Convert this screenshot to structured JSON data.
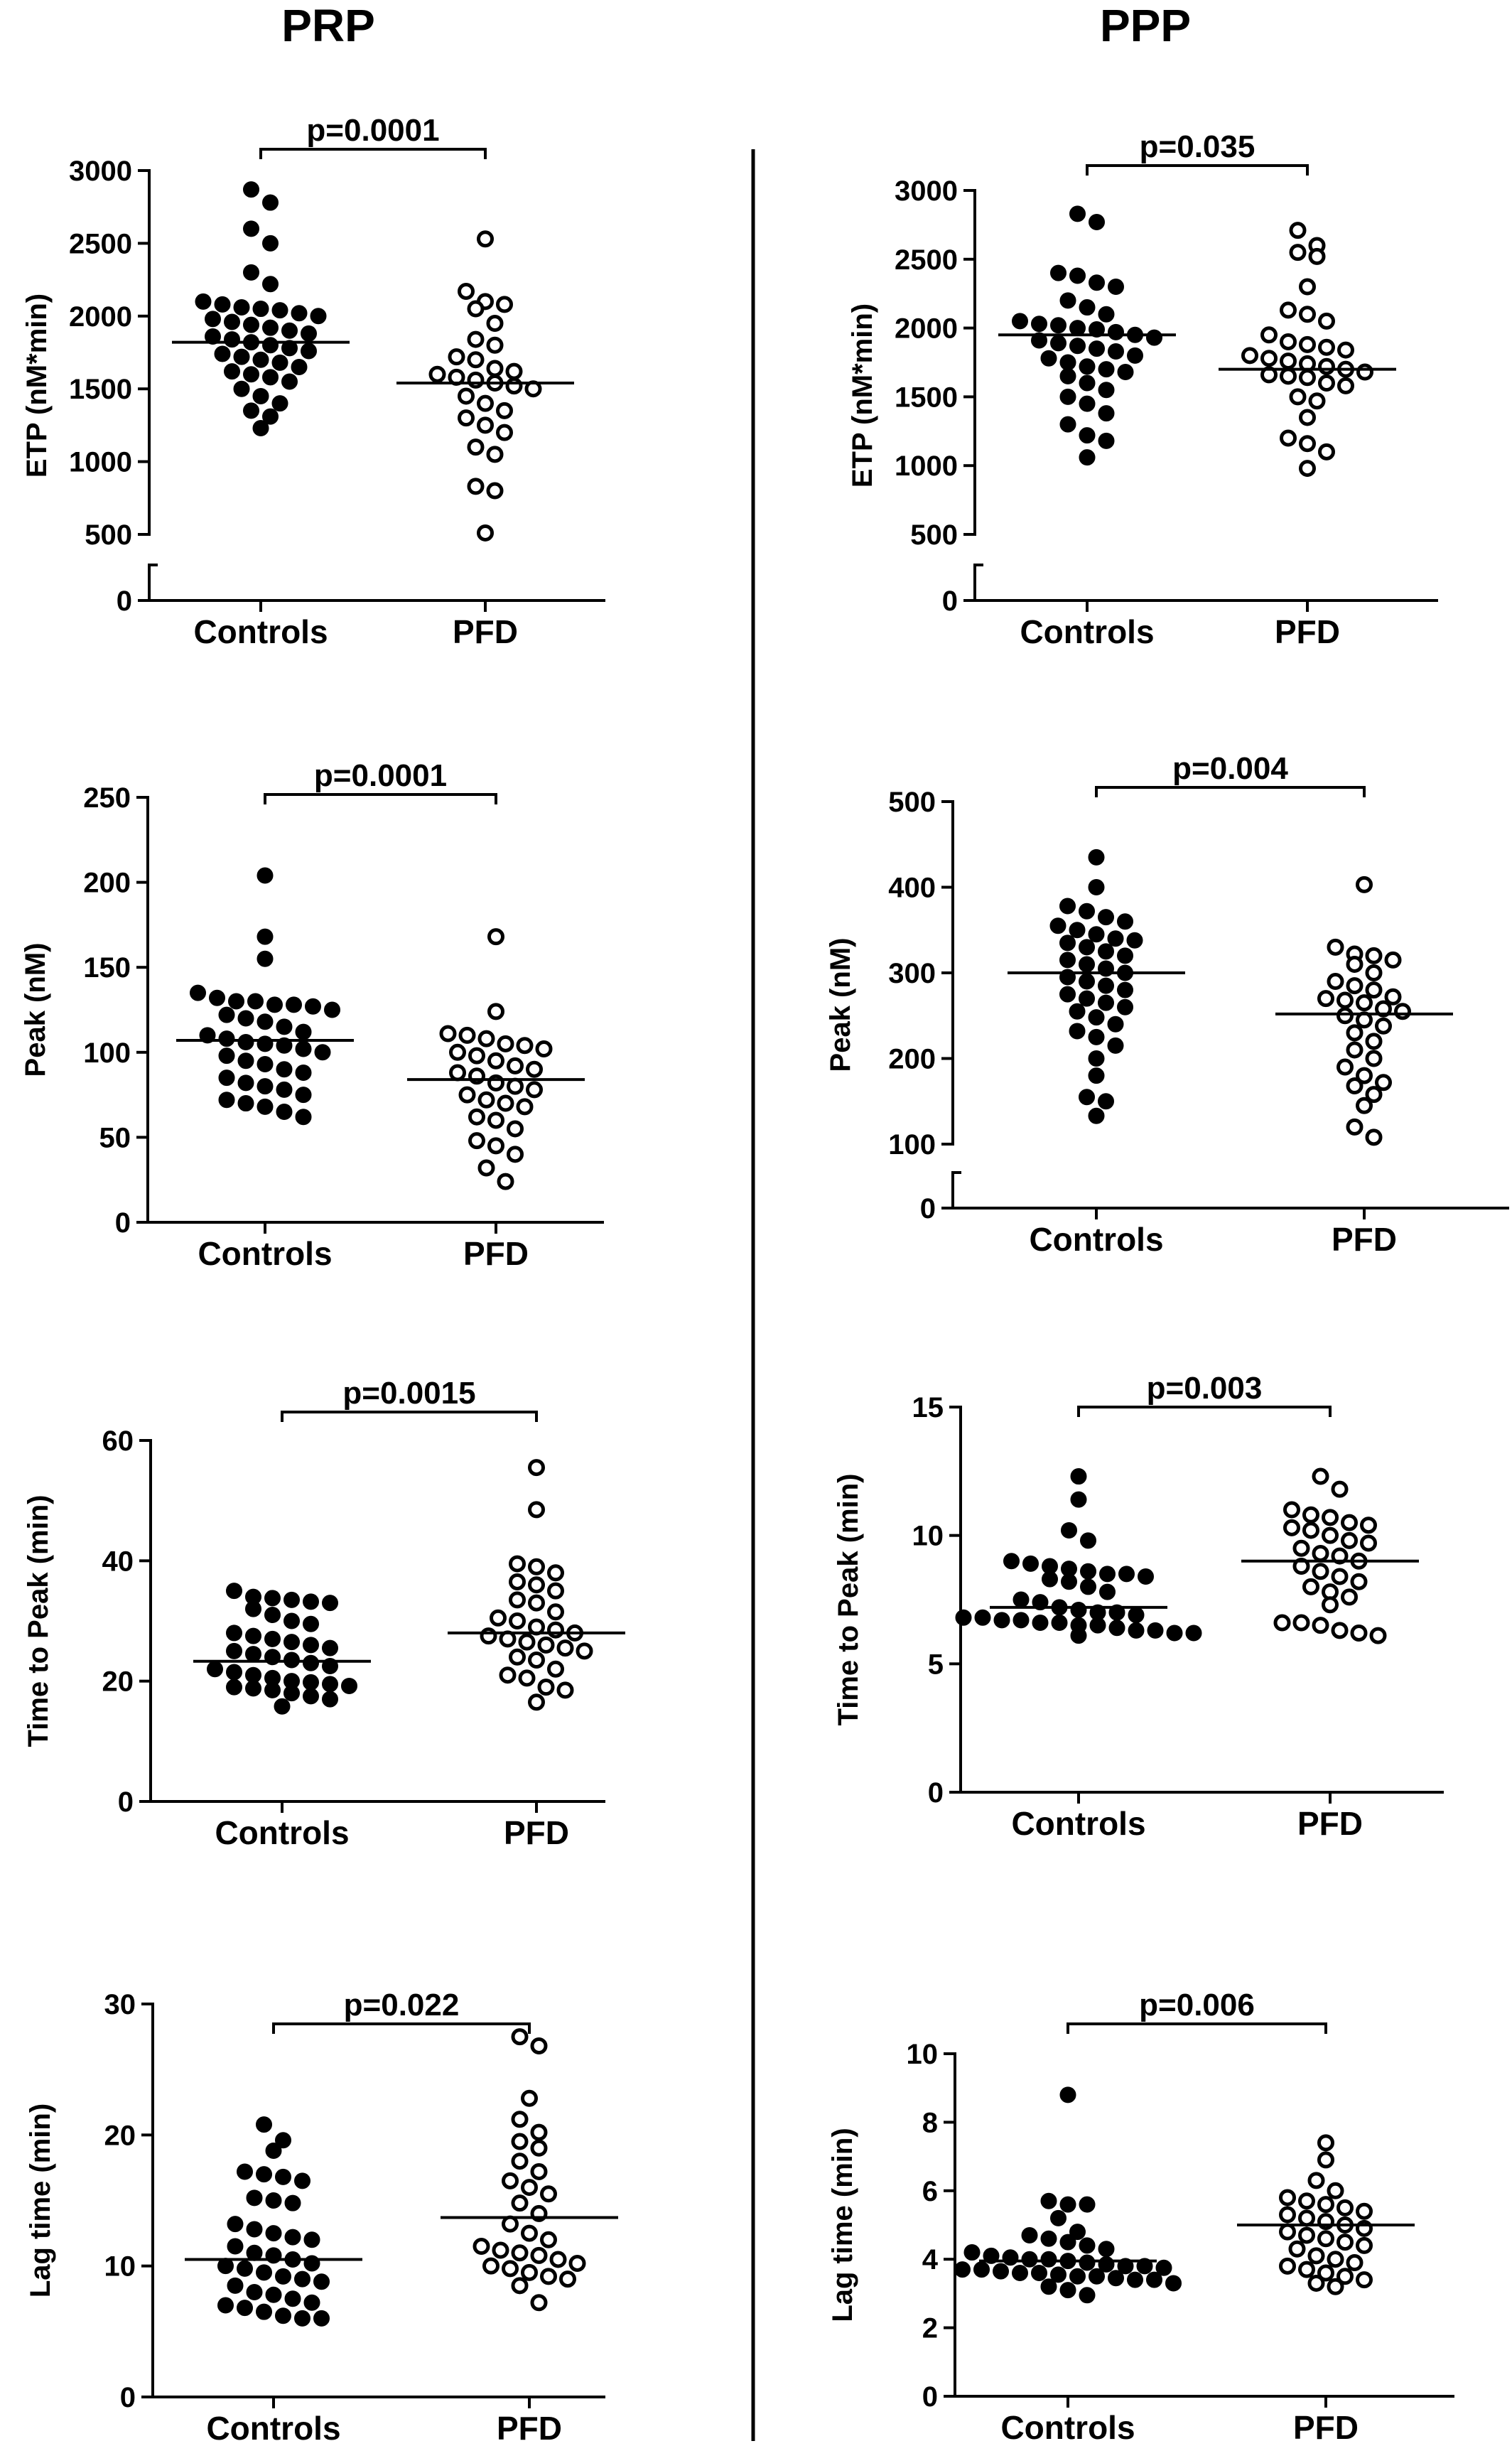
{
  "columns": [
    {
      "title": "PRP"
    },
    {
      "title": "PPP"
    }
  ],
  "chart_data": [
    {
      "type": "scatter",
      "column": "PRP",
      "ylabel": "ETP (nM*min)",
      "categories": [
        "Controls",
        "PFD"
      ],
      "ylim": [
        0,
        3000
      ],
      "yticks": [
        0,
        500,
        1000,
        1500,
        2000,
        2500,
        3000
      ],
      "axis_break": [
        0,
        500
      ],
      "p_value": "p=0.0001",
      "series": [
        {
          "fill": "filled",
          "mean": 1820,
          "values": [
            2870,
            2780,
            2600,
            2500,
            2300,
            2220,
            2100,
            2080,
            2060,
            2050,
            2040,
            2020,
            2000,
            1980,
            1960,
            1940,
            1920,
            1900,
            1880,
            1860,
            1840,
            1820,
            1800,
            1780,
            1760,
            1740,
            1720,
            1700,
            1680,
            1650,
            1620,
            1600,
            1580,
            1550,
            1500,
            1450,
            1400,
            1350,
            1310,
            1230
          ]
        },
        {
          "fill": "open",
          "mean": 1540,
          "values": [
            2530,
            2170,
            2100,
            2080,
            2050,
            1950,
            1840,
            1800,
            1720,
            1700,
            1640,
            1620,
            1600,
            1580,
            1560,
            1540,
            1520,
            1500,
            1450,
            1400,
            1350,
            1300,
            1250,
            1200,
            1100,
            1050,
            830,
            800,
            510
          ]
        }
      ]
    },
    {
      "type": "scatter",
      "column": "PPP",
      "ylabel": "ETP (nM*min)",
      "categories": [
        "Controls",
        "PFD"
      ],
      "ylim": [
        0,
        3000
      ],
      "yticks": [
        0,
        500,
        1000,
        1500,
        2000,
        2500,
        3000
      ],
      "axis_break": [
        0,
        500
      ],
      "p_value": "p=0.035",
      "series": [
        {
          "fill": "filled",
          "mean": 1950,
          "values": [
            2830,
            2770,
            2400,
            2380,
            2330,
            2300,
            2200,
            2150,
            2100,
            2050,
            2030,
            2020,
            2000,
            1990,
            1970,
            1950,
            1930,
            1910,
            1890,
            1870,
            1850,
            1830,
            1800,
            1780,
            1750,
            1720,
            1700,
            1680,
            1650,
            1600,
            1550,
            1500,
            1450,
            1380,
            1300,
            1220,
            1180,
            1060
          ]
        },
        {
          "fill": "open",
          "mean": 1700,
          "values": [
            2710,
            2600,
            2550,
            2520,
            2300,
            2130,
            2100,
            2050,
            1950,
            1900,
            1880,
            1860,
            1840,
            1800,
            1780,
            1760,
            1740,
            1720,
            1700,
            1680,
            1660,
            1650,
            1640,
            1600,
            1580,
            1500,
            1470,
            1350,
            1200,
            1160,
            1100,
            980
          ]
        }
      ]
    },
    {
      "type": "scatter",
      "column": "PRP",
      "ylabel": "Peak (nM)",
      "categories": [
        "Controls",
        "PFD"
      ],
      "ylim": [
        0,
        250
      ],
      "yticks": [
        0,
        50,
        100,
        150,
        200,
        250
      ],
      "p_value": "p=0.0001",
      "series": [
        {
          "fill": "filled",
          "mean": 107,
          "values": [
            204,
            168,
            155,
            135,
            132,
            130,
            130,
            128,
            128,
            127,
            125,
            122,
            120,
            118,
            115,
            112,
            110,
            108,
            106,
            105,
            104,
            102,
            100,
            98,
            95,
            93,
            90,
            88,
            85,
            82,
            80,
            78,
            75,
            72,
            70,
            68,
            65,
            62
          ]
        },
        {
          "fill": "open",
          "mean": 84,
          "values": [
            168,
            124,
            111,
            110,
            108,
            105,
            104,
            102,
            100,
            98,
            95,
            92,
            90,
            88,
            86,
            82,
            80,
            78,
            75,
            72,
            70,
            68,
            62,
            60,
            55,
            48,
            45,
            40,
            32,
            24
          ]
        }
      ]
    },
    {
      "type": "scatter",
      "column": "PPP",
      "ylabel": "Peak (nM)",
      "categories": [
        "Controls",
        "PFD"
      ],
      "ylim": [
        0,
        500
      ],
      "yticks": [
        0,
        100,
        200,
        300,
        400,
        500
      ],
      "axis_break": [
        0,
        100
      ],
      "p_value": "p=0.004",
      "series": [
        {
          "fill": "filled",
          "mean": 300,
          "values": [
            435,
            400,
            378,
            372,
            365,
            360,
            355,
            350,
            345,
            340,
            338,
            335,
            330,
            325,
            320,
            315,
            310,
            305,
            300,
            295,
            290,
            285,
            280,
            275,
            270,
            265,
            260,
            255,
            248,
            240,
            232,
            225,
            215,
            200,
            180,
            155,
            150,
            133
          ]
        },
        {
          "fill": "open",
          "mean": 252,
          "values": [
            403,
            330,
            322,
            320,
            315,
            310,
            300,
            290,
            285,
            280,
            272,
            270,
            268,
            265,
            258,
            255,
            250,
            245,
            238,
            230,
            220,
            210,
            200,
            190,
            180,
            172,
            168,
            158,
            145,
            120,
            108
          ]
        }
      ]
    },
    {
      "type": "scatter",
      "column": "PRP",
      "ylabel": "Time to Peak (min)",
      "categories": [
        "Controls",
        "PFD"
      ],
      "ylim": [
        0,
        60
      ],
      "yticks": [
        0,
        20,
        40,
        60
      ],
      "p_value": "p=0.0015",
      "series": [
        {
          "fill": "filled",
          "mean": 23.3,
          "values": [
            35,
            34,
            33.8,
            33.5,
            33.2,
            33,
            32,
            31,
            30,
            29.5,
            28,
            27.5,
            27,
            26.5,
            26,
            25.5,
            25,
            24.5,
            24,
            23.5,
            23,
            22.5,
            22,
            21.5,
            21,
            20.5,
            20,
            19.8,
            19.5,
            19.2,
            19,
            18.8,
            18.5,
            18,
            17.5,
            17,
            15.8
          ]
        },
        {
          "fill": "open",
          "mean": 28,
          "values": [
            55.5,
            48.5,
            39.5,
            39,
            38,
            36.5,
            36,
            35,
            33.5,
            33,
            31.5,
            30.5,
            30,
            29,
            28.5,
            28,
            27.5,
            27,
            26.5,
            26,
            25.5,
            25,
            24,
            23.5,
            22,
            21,
            20.5,
            19,
            18.5,
            16.5
          ]
        }
      ]
    },
    {
      "type": "scatter",
      "column": "PPP",
      "ylabel": "Time to Peak (min)",
      "categories": [
        "Controls",
        "PFD"
      ],
      "ylim": [
        0,
        15
      ],
      "yticks": [
        0,
        5,
        10,
        15
      ],
      "p_value": "p=0.003",
      "series": [
        {
          "fill": "filled",
          "mean": 7.2,
          "values": [
            12.3,
            11.4,
            10.2,
            9.8,
            9,
            8.9,
            8.8,
            8.7,
            8.6,
            8.5,
            8.5,
            8.4,
            8.3,
            8.2,
            8,
            7.8,
            7.5,
            7.4,
            7.2,
            7.1,
            7,
            7,
            6.9,
            6.8,
            6.8,
            6.7,
            6.7,
            6.6,
            6.6,
            6.5,
            6.5,
            6.4,
            6.3,
            6.3,
            6.2,
            6.2,
            6.1
          ]
        },
        {
          "fill": "open",
          "mean": 9,
          "values": [
            12.3,
            11.8,
            11,
            10.8,
            10.7,
            10.5,
            10.4,
            10.3,
            10.2,
            10,
            9.8,
            9.7,
            9.5,
            9.3,
            9.2,
            9,
            8.8,
            8.6,
            8.4,
            8.2,
            8,
            7.8,
            7.6,
            7.3,
            6.6,
            6.6,
            6.5,
            6.3,
            6.2,
            6.1
          ]
        }
      ]
    },
    {
      "type": "scatter",
      "column": "PRP",
      "ylabel": "Lag time (min)",
      "categories": [
        "Controls",
        "PFD"
      ],
      "ylim": [
        0,
        30
      ],
      "yticks": [
        0,
        10,
        20,
        30
      ],
      "p_value": "p=0.022",
      "series": [
        {
          "fill": "filled",
          "mean": 10.5,
          "values": [
            20.8,
            19.6,
            18.8,
            17.2,
            17,
            16.8,
            16.5,
            15.2,
            15,
            14.8,
            13.2,
            12.8,
            12.5,
            12.2,
            12,
            11.5,
            11,
            10.8,
            10.5,
            10.2,
            10,
            9.8,
            9.5,
            9.2,
            9,
            8.8,
            8.5,
            8,
            7.8,
            7.5,
            7.2,
            7,
            6.8,
            6.5,
            6.2,
            6,
            6
          ]
        },
        {
          "fill": "open",
          "mean": 13.7,
          "values": [
            27.5,
            26.8,
            22.8,
            21.2,
            20.2,
            19.5,
            19,
            18,
            17.2,
            16.5,
            16,
            15.5,
            14.8,
            14,
            13.2,
            12.5,
            12,
            11.5,
            11.2,
            11,
            10.8,
            10.5,
            10.2,
            10,
            9.8,
            9.5,
            9.2,
            9,
            8.5,
            7.2
          ]
        }
      ]
    },
    {
      "type": "scatter",
      "column": "PPP",
      "ylabel": "Lag time (min)",
      "categories": [
        "Controls",
        "PFD"
      ],
      "ylim": [
        0,
        10
      ],
      "yticks": [
        0,
        2,
        4,
        6,
        8,
        10
      ],
      "p_value": "p=0.006",
      "series": [
        {
          "fill": "filled",
          "mean": 3.95,
          "values": [
            8.8,
            5.7,
            5.6,
            5.6,
            5.2,
            4.8,
            4.7,
            4.6,
            4.5,
            4.4,
            4.3,
            4.2,
            4.1,
            4.05,
            4,
            4,
            3.95,
            3.9,
            3.85,
            3.8,
            3.8,
            3.75,
            3.7,
            3.7,
            3.65,
            3.6,
            3.6,
            3.55,
            3.5,
            3.5,
            3.45,
            3.4,
            3.4,
            3.3,
            3.2,
            3.1,
            2.95
          ]
        },
        {
          "fill": "open",
          "mean": 5,
          "values": [
            7.4,
            6.9,
            6.3,
            6,
            5.8,
            5.7,
            5.6,
            5.5,
            5.4,
            5.3,
            5.2,
            5.1,
            5,
            4.9,
            4.8,
            4.7,
            4.6,
            4.5,
            4.4,
            4.3,
            4.1,
            4,
            3.9,
            3.8,
            3.7,
            3.6,
            3.5,
            3.4,
            3.3,
            3.2
          ]
        }
      ]
    }
  ]
}
